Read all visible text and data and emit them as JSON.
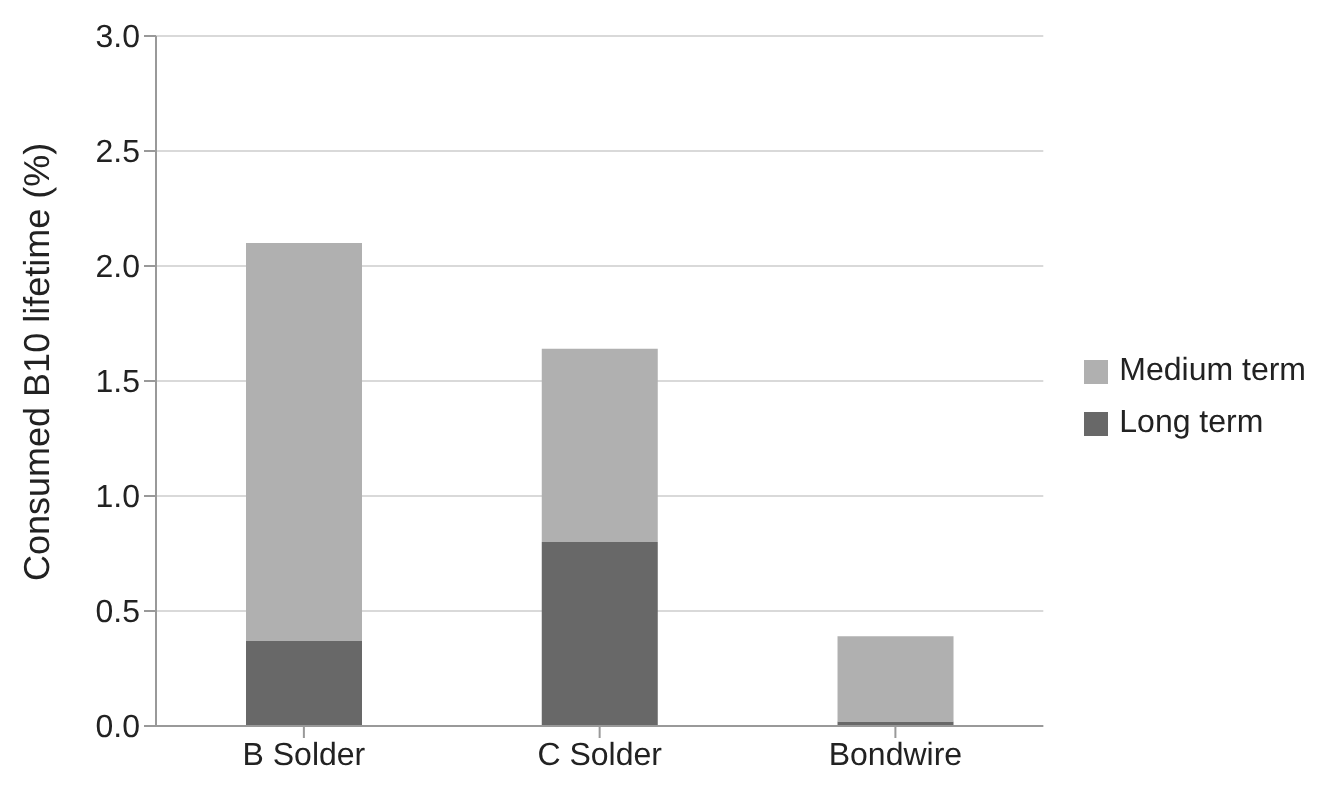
{
  "chart_data": {
    "type": "bar",
    "ylabel": "Consumed B10 lifetime (%)",
    "categories": [
      "B Solder",
      "C Solder",
      "Bondwire"
    ],
    "stacked": true,
    "series": [
      {
        "name": "Long term",
        "color": "#686868",
        "values": [
          0.37,
          0.8,
          0.02
        ]
      },
      {
        "name": "Medium term",
        "color": "#b0b0b0",
        "values": [
          1.73,
          0.84,
          0.37
        ]
      }
    ],
    "ylim": [
      0,
      3
    ],
    "yticks": [
      {
        "value": 0,
        "label": "0.0"
      },
      {
        "value": 0.5,
        "label": "0.5"
      },
      {
        "value": 1,
        "label": "1.0"
      },
      {
        "value": 1.5,
        "label": "1.5"
      },
      {
        "value": 2,
        "label": "2.0"
      },
      {
        "value": 2.5,
        "label": "2.5"
      },
      {
        "value": 3,
        "label": "3.0"
      }
    ],
    "grid": "y",
    "legend": "right"
  }
}
